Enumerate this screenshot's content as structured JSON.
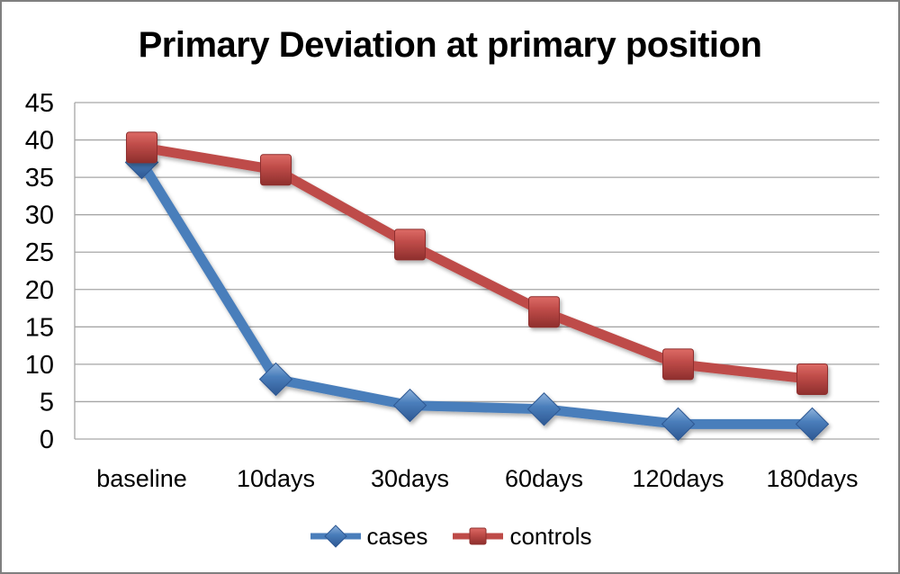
{
  "chart_data": {
    "type": "line",
    "title": "Primary Deviation at primary position",
    "categories": [
      "baseline",
      "10days",
      "30days",
      "60days",
      "120days",
      "180days"
    ],
    "series": [
      {
        "name": "cases",
        "marker": "diamond",
        "color": "#4A7EBB",
        "color_light": "#8FB3DC",
        "color_dark": "#2E5893",
        "values": [
          37,
          8,
          4.5,
          4,
          2,
          2
        ]
      },
      {
        "name": "controls",
        "marker": "square",
        "color": "#BE4B48",
        "color_light": "#DD6B66",
        "color_dark": "#8E2F2D",
        "values": [
          39,
          36,
          26,
          17,
          10,
          8
        ]
      }
    ],
    "xlabel": "",
    "ylabel": "",
    "ylim": [
      0,
      45
    ],
    "ytick_step": 5,
    "grid": "horizontal",
    "gridline_color": "#a6a6a6",
    "axis_text_color": "#000000",
    "legend_position": "bottom"
  }
}
